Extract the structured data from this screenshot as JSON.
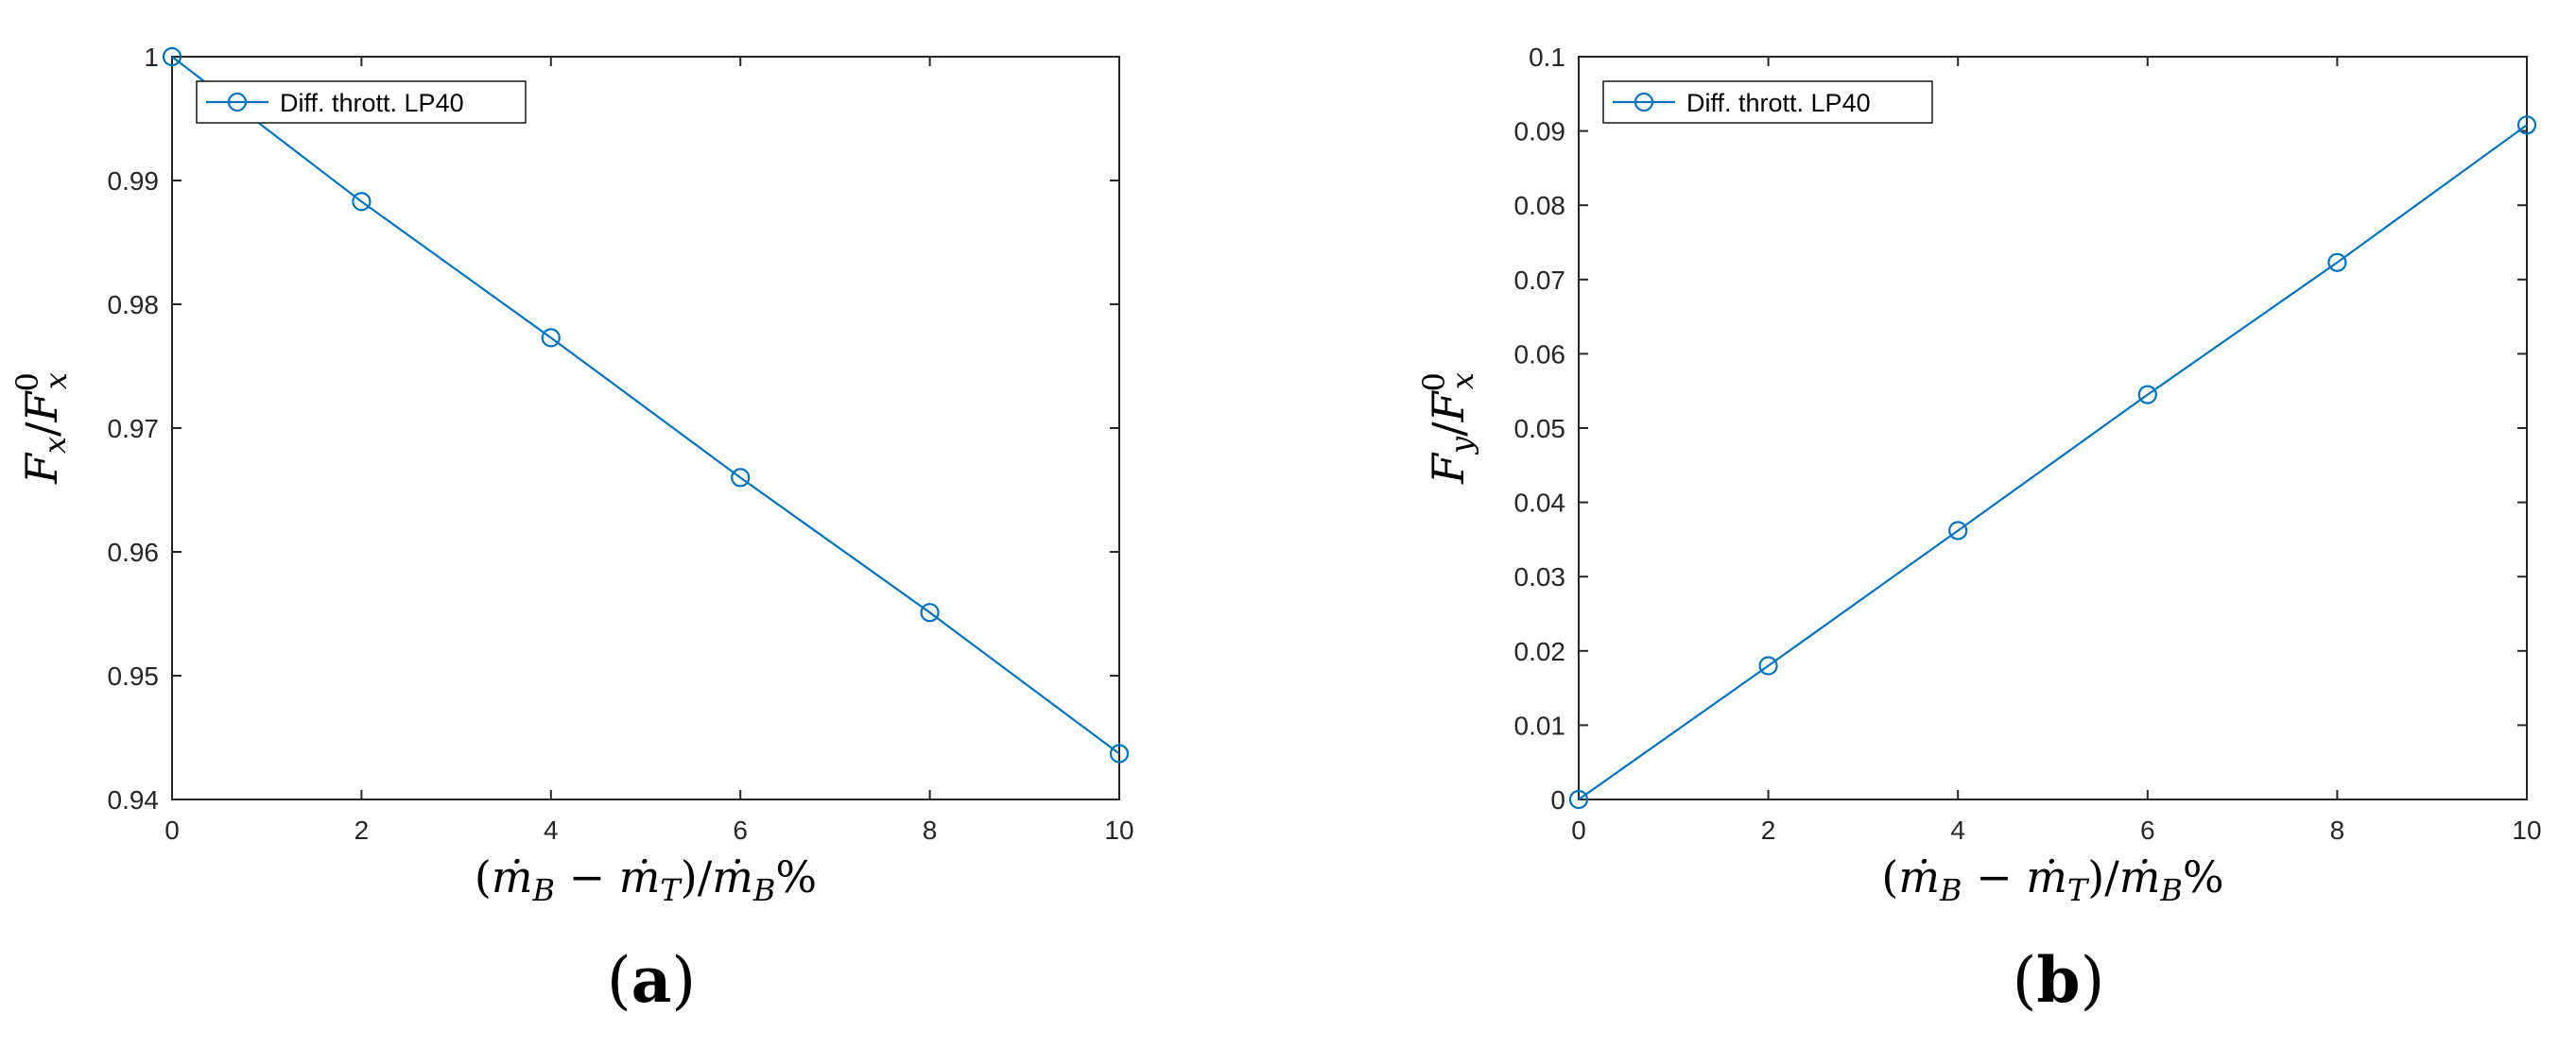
{
  "chart_data": [
    {
      "type": "line",
      "panel_label": "(a)",
      "xlabel": "(ṁB − ṁT)/ṁB%",
      "ylabel": "Fx/F0x",
      "xlim": [
        0,
        10
      ],
      "ylim": [
        0.94,
        1.0
      ],
      "xticks": [
        0,
        2,
        4,
        6,
        8,
        10
      ],
      "yticks": [
        0.94,
        0.95,
        0.96,
        0.97,
        0.98,
        0.99,
        1
      ],
      "xtick_labels": [
        "0",
        "2",
        "4",
        "6",
        "8",
        "10"
      ],
      "ytick_labels": [
        "0.94",
        "0.95",
        "0.96",
        "0.97",
        "0.98",
        "0.99",
        "1"
      ],
      "grid": false,
      "legend_position": "top-left",
      "series": [
        {
          "name": "Diff. thrott. LP40",
          "color": "#0072BD",
          "marker": "circle",
          "x": [
            0,
            2,
            4,
            6,
            8,
            10
          ],
          "y": [
            1.0,
            0.9883,
            0.9773,
            0.966,
            0.9551,
            0.9437
          ]
        }
      ]
    },
    {
      "type": "line",
      "panel_label": "(b)",
      "xlabel": "(ṁB − ṁT)/ṁB%",
      "ylabel": "Fy/F0x",
      "xlim": [
        0,
        10
      ],
      "ylim": [
        0,
        0.1
      ],
      "xticks": [
        0,
        2,
        4,
        6,
        8,
        10
      ],
      "yticks": [
        0,
        0.01,
        0.02,
        0.03,
        0.04,
        0.05,
        0.06,
        0.07,
        0.08,
        0.09,
        0.1
      ],
      "xtick_labels": [
        "0",
        "2",
        "4",
        "6",
        "8",
        "10"
      ],
      "ytick_labels": [
        "0",
        "0.01",
        "0.02",
        "0.03",
        "0.04",
        "0.05",
        "0.06",
        "0.07",
        "0.08",
        "0.09",
        "0.1"
      ],
      "grid": false,
      "legend_position": "top-left",
      "series": [
        {
          "name": "Diff. thrott. LP40",
          "color": "#0072BD",
          "marker": "circle",
          "x": [
            0,
            2,
            4,
            6,
            8,
            10
          ],
          "y": [
            0,
            0.018,
            0.0362,
            0.0545,
            0.0723,
            0.0908
          ]
        }
      ]
    }
  ]
}
